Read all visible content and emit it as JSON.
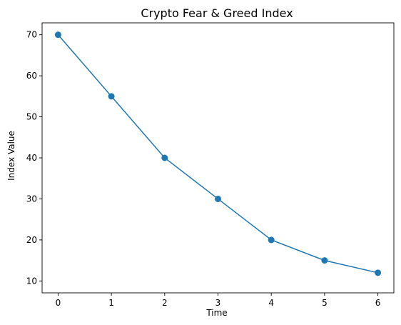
{
  "chart_data": {
    "type": "line",
    "title": "Crypto Fear & Greed Index",
    "xlabel": "Time",
    "ylabel": "Index Value",
    "x": [
      0,
      1,
      2,
      3,
      4,
      5,
      6
    ],
    "series": [
      {
        "values": [
          70,
          55,
          40,
          30,
          20,
          15,
          12
        ],
        "color": "#1f77b4",
        "marker": "circle"
      }
    ],
    "xlim": [
      -0.3,
      6.3
    ],
    "ylim": [
      7.1,
      72.9
    ],
    "xticks": [
      0,
      1,
      2,
      3,
      4,
      5,
      6
    ],
    "yticks": [
      10,
      20,
      30,
      40,
      50,
      60,
      70
    ],
    "grid": false,
    "legend": "none"
  }
}
